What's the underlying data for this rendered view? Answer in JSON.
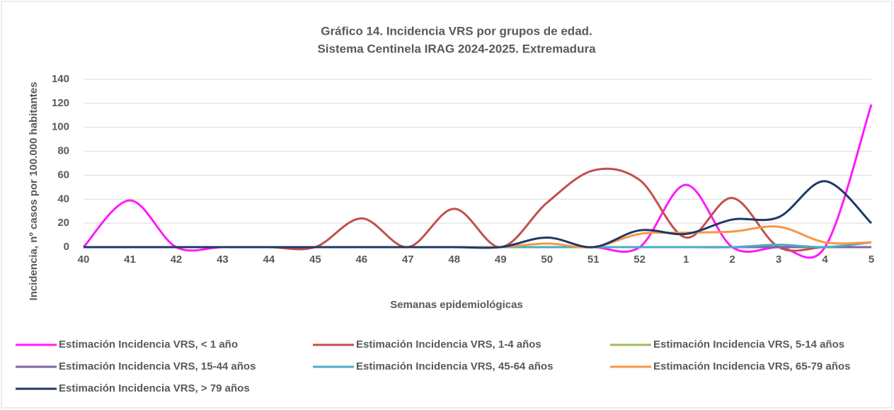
{
  "chart_data": {
    "type": "line",
    "title": [
      "Gráfico 14. Incidencia VRS por grupos de edad.",
      "Sistema Centinela IRAG 2024-2025. Extremadura"
    ],
    "x_label": "Semanas epidemiológicas",
    "y_label": "Incidencia, nº casos por 100.000 habitantes",
    "categories": [
      "40",
      "41",
      "42",
      "43",
      "44",
      "45",
      "46",
      "47",
      "48",
      "49",
      "50",
      "51",
      "52",
      "1",
      "2",
      "3",
      "4",
      "5"
    ],
    "ylim": [
      0,
      140
    ],
    "yticks": [
      0,
      20,
      40,
      60,
      80,
      100,
      120,
      140
    ],
    "grid": true,
    "smooth": true,
    "legend": "bottom",
    "series": [
      {
        "name": "Estimación Incidencia VRS, < 1 año",
        "color": "#ff1aff",
        "values": [
          0,
          39,
          0,
          0,
          0,
          0,
          0,
          0,
          0,
          0,
          0,
          0,
          0,
          52,
          0,
          0,
          0,
          119
        ]
      },
      {
        "name": "Estimación Incidencia VRS, 1-4 años",
        "color": "#c0504d",
        "values": [
          0,
          0,
          0,
          0,
          0,
          0,
          24,
          0,
          32,
          0,
          37,
          64,
          56,
          8,
          41,
          0,
          0,
          0
        ]
      },
      {
        "name": "Estimación Incidencia VRS, 5-14 años",
        "color": "#9bbb59",
        "values": [
          0,
          0,
          0,
          0,
          0,
          0,
          0,
          0,
          0,
          0,
          0,
          0,
          0,
          0,
          0,
          0,
          0,
          0
        ]
      },
      {
        "name": "Estimación Incidencia VRS, 15-44 años",
        "color": "#8064a2",
        "values": [
          0,
          0,
          0,
          0,
          0,
          0,
          0,
          0,
          0,
          0,
          0,
          0,
          0,
          0,
          0,
          0,
          0,
          0
        ]
      },
      {
        "name": "Estimación Incidencia VRS, 45-64 años",
        "color": "#4bacc6",
        "values": [
          0,
          0,
          0,
          0,
          0,
          0,
          0,
          0,
          0,
          0,
          0,
          0,
          0,
          0,
          0,
          2,
          0,
          4
        ]
      },
      {
        "name": "Estimación Incidencia VRS, 65-79 años",
        "color": "#f79646",
        "values": [
          0,
          0,
          0,
          0,
          0,
          0,
          0,
          0,
          0,
          0,
          3,
          0,
          11,
          12,
          13,
          17,
          4,
          4
        ]
      },
      {
        "name": "Estimación Incidencia VRS, > 79 años",
        "color": "#1f3864",
        "values": [
          0,
          0,
          0,
          0,
          0,
          0,
          0,
          0,
          0,
          0,
          8,
          0,
          14,
          11,
          23,
          25,
          55,
          20
        ]
      }
    ]
  }
}
